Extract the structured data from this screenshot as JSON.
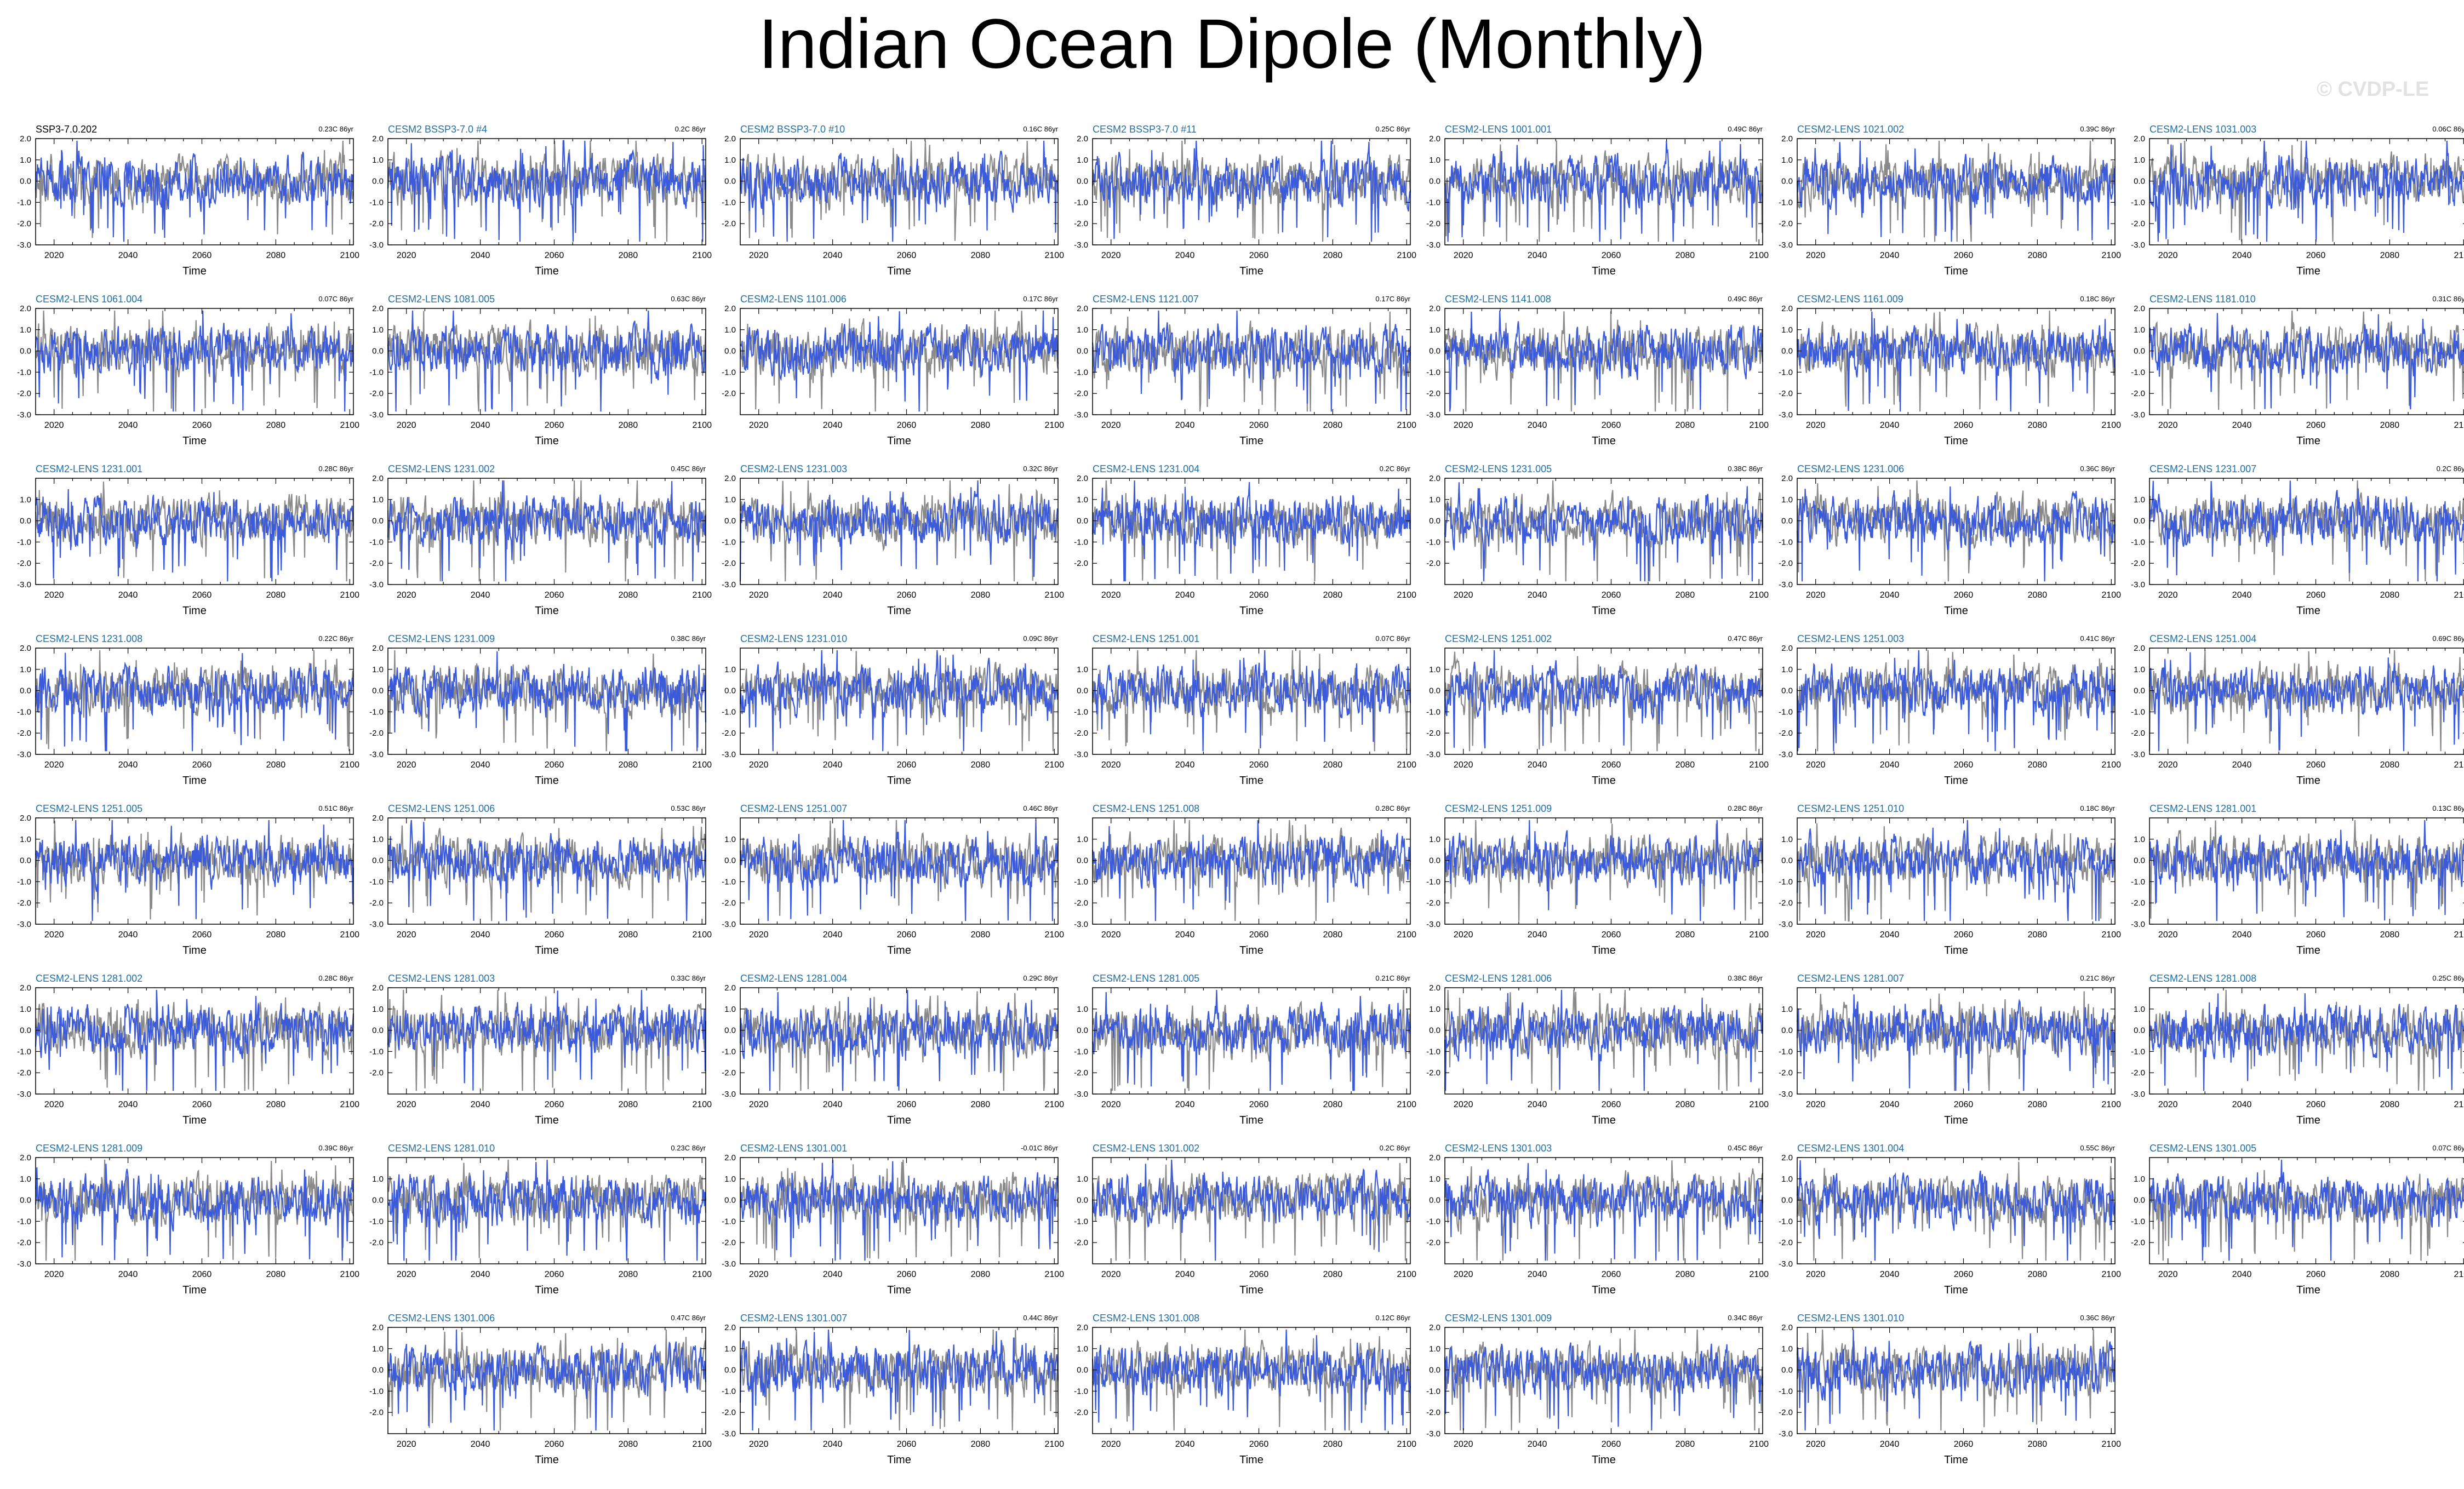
{
  "title": "Indian Ocean Dipole (Monthly)",
  "watermark": "© CVDP-LE",
  "colors": {
    "observations": "#8a8a8a",
    "ensemble_member": "#3b5bdb",
    "panel_title_highlight": "#1e6fa6",
    "panel_title_default": "#000000"
  },
  "chart_data": {
    "type": "line",
    "x_label": "Time",
    "x_ticks": [
      2020,
      2040,
      2060,
      2080,
      2100
    ],
    "xlim": [
      2015,
      2101
    ],
    "trend_units": "C 86yr",
    "note": "Each panel overlays a grey (observed/reference) and a blue (simulated) monthly IOD index series. Series shown are representative traces, not individual monthly values.",
    "panels": [
      {
        "title": "SSP3-7.0.202",
        "trend": "0.23C 86yr",
        "ylim": [
          -3.0,
          2.0
        ],
        "yticks": [
          "2.0",
          "1.0",
          "0.0",
          "-1.0",
          "-2.0",
          "-3.0"
        ],
        "title_color": "default",
        "col": 0,
        "row": 0
      },
      {
        "title": "CESM2 BSSP3-7.0 #4",
        "trend": "0.2C 86yr",
        "ylim": [
          -3.0,
          2.0
        ],
        "yticks": [
          "2.0",
          "1.0",
          "0.0",
          "-1.0",
          "-2.0",
          "-3.0"
        ],
        "col": 1,
        "row": 0
      },
      {
        "title": "CESM2 BSSP3-7.0 #10",
        "trend": "0.16C 86yr",
        "ylim": [
          -3.0,
          2.0
        ],
        "yticks": [
          "2.0",
          "1.0",
          "0.0",
          "-1.0",
          "-2.0"
        ],
        "col": 2,
        "row": 0
      },
      {
        "title": "CESM2 BSSP3-7.0 #11",
        "trend": "0.25C 86yr",
        "ylim": [
          -3.0,
          2.0
        ],
        "yticks": [
          "2.0",
          "1.0",
          "0.0",
          "-1.0",
          "-2.0",
          "-3.0"
        ],
        "col": 3,
        "row": 0
      },
      {
        "title": "CESM2-LENS 1001.001",
        "trend": "0.49C 86yr",
        "ylim": [
          -3.0,
          2.0
        ],
        "yticks": [
          "2.0",
          "1.0",
          "0.0",
          "-1.0",
          "-2.0",
          "-3.0"
        ],
        "col": 4,
        "row": 0
      },
      {
        "title": "CESM2-LENS 1021.002",
        "trend": "0.39C 86yr",
        "ylim": [
          -3.0,
          2.0
        ],
        "yticks": [
          "2.0",
          "1.0",
          "0.0",
          "-1.0",
          "-2.0",
          "-3.0"
        ],
        "col": 5,
        "row": 0
      },
      {
        "title": "CESM2-LENS 1031.003",
        "trend": "0.06C 86yr",
        "ylim": [
          -3.0,
          2.0
        ],
        "yticks": [
          "2.0",
          "1.0",
          "0.0",
          "-1.0",
          "-2.0",
          "-3.0"
        ],
        "col": 6,
        "row": 0
      },
      {
        "title": "CESM2-LENS 1061.004",
        "trend": "0.07C 86yr",
        "ylim": [
          -3.0,
          2.0
        ],
        "yticks": [
          "2.0",
          "1.0",
          "0.0",
          "-1.0",
          "-2.0",
          "-3.0"
        ],
        "col": 0,
        "row": 1
      },
      {
        "title": "CESM2-LENS 1081.005",
        "trend": "0.63C 86yr",
        "ylim": [
          -3.0,
          2.0
        ],
        "yticks": [
          "2.0",
          "1.0",
          "0.0",
          "-1.0",
          "-2.0",
          "-3.0"
        ],
        "col": 1,
        "row": 1
      },
      {
        "title": "CESM2-LENS 1101.006",
        "trend": "0.17C 86yr",
        "ylim": [
          -3.0,
          2.0
        ],
        "yticks": [
          "2.0",
          "1.0",
          "0.0",
          "-1.0",
          "-2.0"
        ],
        "col": 2,
        "row": 1
      },
      {
        "title": "CESM2-LENS 1121.007",
        "trend": "0.17C 86yr",
        "ylim": [
          -3.0,
          2.0
        ],
        "yticks": [
          "2.0",
          "1.0",
          "0.0",
          "-1.0",
          "-2.0",
          "-3.0"
        ],
        "col": 3,
        "row": 1
      },
      {
        "title": "CESM2-LENS 1141.008",
        "trend": "0.49C 86yr",
        "ylim": [
          -3.0,
          2.0
        ],
        "yticks": [
          "2.0",
          "1.0",
          "0.0",
          "-1.0",
          "-2.0",
          "-3.0"
        ],
        "col": 4,
        "row": 1
      },
      {
        "title": "CESM2-LENS 1161.009",
        "trend": "0.18C 86yr",
        "ylim": [
          -3.0,
          2.0
        ],
        "yticks": [
          "2.0",
          "1.0",
          "0.0",
          "-1.0",
          "-2.0",
          "-3.0"
        ],
        "col": 5,
        "row": 1
      },
      {
        "title": "CESM2-LENS 1181.010",
        "trend": "0.31C 86yr",
        "ylim": [
          -3.0,
          2.0
        ],
        "yticks": [
          "2.0",
          "1.0",
          "0.0",
          "-1.0",
          "-2.0",
          "-3.0"
        ],
        "col": 6,
        "row": 1
      },
      {
        "title": "CESM2-LENS 1231.001",
        "trend": "0.28C 86yr",
        "ylim": [
          -3.0,
          2.0
        ],
        "yticks": [
          "1.0",
          "0.0",
          "-1.0",
          "-2.0",
          "-3.0"
        ],
        "col": 0,
        "row": 2
      },
      {
        "title": "CESM2-LENS 1231.002",
        "trend": "0.45C 86yr",
        "ylim": [
          -3.0,
          2.0
        ],
        "yticks": [
          "2.0",
          "1.0",
          "0.0",
          "-1.0",
          "-2.0",
          "-3.0"
        ],
        "col": 1,
        "row": 2
      },
      {
        "title": "CESM2-LENS 1231.003",
        "trend": "0.32C 86yr",
        "ylim": [
          -3.0,
          2.0
        ],
        "yticks": [
          "2.0",
          "1.0",
          "0.0",
          "-1.0",
          "-2.0",
          "-3.0"
        ],
        "col": 2,
        "row": 2
      },
      {
        "title": "CESM2-LENS 1231.004",
        "trend": "0.2C 86yr",
        "ylim": [
          -3.0,
          2.0
        ],
        "yticks": [
          "2.0",
          "1.0",
          "0.0",
          "-1.0",
          "-2.0"
        ],
        "col": 3,
        "row": 2
      },
      {
        "title": "CESM2-LENS 1231.005",
        "trend": "0.38C 86yr",
        "ylim": [
          -3.0,
          2.0
        ],
        "yticks": [
          "2.0",
          "1.0",
          "0.0",
          "-1.0",
          "-2.0"
        ],
        "col": 4,
        "row": 2
      },
      {
        "title": "CESM2-LENS 1231.006",
        "trend": "0.36C 86yr",
        "ylim": [
          -3.0,
          2.0
        ],
        "yticks": [
          "2.0",
          "1.0",
          "0.0",
          "-1.0",
          "-2.0",
          "-3.0"
        ],
        "col": 5,
        "row": 2
      },
      {
        "title": "CESM2-LENS 1231.007",
        "trend": "0.2C 86yr",
        "ylim": [
          -3.0,
          2.0
        ],
        "yticks": [
          "1.0",
          "0.0",
          "-1.0",
          "-2.0",
          "-3.0"
        ],
        "col": 6,
        "row": 2
      },
      {
        "title": "CESM2-LENS 1231.008",
        "trend": "0.22C 86yr",
        "ylim": [
          -3.0,
          2.0
        ],
        "yticks": [
          "2.0",
          "1.0",
          "0.0",
          "-1.0",
          "-2.0",
          "-3.0"
        ],
        "col": 0,
        "row": 3
      },
      {
        "title": "CESM2-LENS 1231.009",
        "trend": "0.38C 86yr",
        "ylim": [
          -3.0,
          2.0
        ],
        "yticks": [
          "2.0",
          "1.0",
          "0.0",
          "-1.0",
          "-2.0",
          "-3.0"
        ],
        "col": 1,
        "row": 3
      },
      {
        "title": "CESM2-LENS 1231.010",
        "trend": "0.09C 86yr",
        "ylim": [
          -3.0,
          2.0
        ],
        "yticks": [
          "1.0",
          "0.0",
          "-1.0",
          "-2.0",
          "-3.0"
        ],
        "col": 2,
        "row": 3
      },
      {
        "title": "CESM2-LENS 1251.001",
        "trend": "0.07C 86yr",
        "ylim": [
          -3.0,
          2.0
        ],
        "yticks": [
          "1.0",
          "0.0",
          "-1.0",
          "-2.0",
          "-3.0"
        ],
        "col": 3,
        "row": 3
      },
      {
        "title": "CESM2-LENS 1251.002",
        "trend": "0.47C 86yr",
        "ylim": [
          -3.0,
          2.0
        ],
        "yticks": [
          "1.0",
          "0.0",
          "-1.0",
          "-2.0",
          "-3.0"
        ],
        "col": 4,
        "row": 3
      },
      {
        "title": "CESM2-LENS 1251.003",
        "trend": "0.41C 86yr",
        "ylim": [
          -3.0,
          2.0
        ],
        "yticks": [
          "2.0",
          "1.0",
          "0.0",
          "-1.0",
          "-2.0",
          "-3.0"
        ],
        "col": 5,
        "row": 3
      },
      {
        "title": "CESM2-LENS 1251.004",
        "trend": "0.69C 86yr",
        "ylim": [
          -3.0,
          2.0
        ],
        "yticks": [
          "2.0",
          "1.0",
          "0.0",
          "-1.0",
          "-2.0",
          "-3.0"
        ],
        "col": 6,
        "row": 3
      },
      {
        "title": "CESM2-LENS 1251.005",
        "trend": "0.51C 86yr",
        "ylim": [
          -3.0,
          2.0
        ],
        "yticks": [
          "2.0",
          "1.0",
          "0.0",
          "-1.0",
          "-2.0",
          "-3.0"
        ],
        "col": 0,
        "row": 4
      },
      {
        "title": "CESM2-LENS 1251.006",
        "trend": "0.53C 86yr",
        "ylim": [
          -3.0,
          2.0
        ],
        "yticks": [
          "2.0",
          "1.0",
          "0.0",
          "-1.0",
          "-2.0",
          "-3.0"
        ],
        "col": 1,
        "row": 4
      },
      {
        "title": "CESM2-LENS 1251.007",
        "trend": "0.46C 86yr",
        "ylim": [
          -3.0,
          2.0
        ],
        "yticks": [
          "1.0",
          "0.0",
          "-1.0",
          "-2.0",
          "-3.0"
        ],
        "col": 2,
        "row": 4
      },
      {
        "title": "CESM2-LENS 1251.008",
        "trend": "0.28C 86yr",
        "ylim": [
          -3.0,
          2.0
        ],
        "yticks": [
          "1.0",
          "0.0",
          "-1.0",
          "-2.0",
          "-3.0"
        ],
        "col": 3,
        "row": 4
      },
      {
        "title": "CESM2-LENS 1251.009",
        "trend": "0.28C 86yr",
        "ylim": [
          -3.0,
          2.0
        ],
        "yticks": [
          "1.0",
          "0.0",
          "-1.0",
          "-2.0",
          "-3.0"
        ],
        "col": 4,
        "row": 4
      },
      {
        "title": "CESM2-LENS 1251.010",
        "trend": "0.18C 86yr",
        "ylim": [
          -3.0,
          2.0
        ],
        "yticks": [
          "1.0",
          "0.0",
          "-1.0",
          "-2.0",
          "-3.0"
        ],
        "col": 5,
        "row": 4
      },
      {
        "title": "CESM2-LENS 1281.001",
        "trend": "0.13C 86yr",
        "ylim": [
          -3.0,
          2.0
        ],
        "yticks": [
          "1.0",
          "0.0",
          "-1.0",
          "-2.0",
          "-3.0"
        ],
        "col": 6,
        "row": 4
      },
      {
        "title": "CESM2-LENS 1281.002",
        "trend": "0.28C 86yr",
        "ylim": [
          -3.0,
          2.0
        ],
        "yticks": [
          "2.0",
          "1.0",
          "0.0",
          "-1.0",
          "-2.0",
          "-3.0"
        ],
        "col": 0,
        "row": 5
      },
      {
        "title": "CESM2-LENS 1281.003",
        "trend": "0.33C 86yr",
        "ylim": [
          -3.0,
          2.0
        ],
        "yticks": [
          "2.0",
          "1.0",
          "0.0",
          "-1.0",
          "-2.0"
        ],
        "col": 1,
        "row": 5
      },
      {
        "title": "CESM2-LENS 1281.004",
        "trend": "0.29C 86yr",
        "ylim": [
          -3.0,
          2.0
        ],
        "yticks": [
          "2.0",
          "1.0",
          "0.0",
          "-1.0",
          "-2.0",
          "-3.0"
        ],
        "col": 2,
        "row": 5
      },
      {
        "title": "CESM2-LENS 1281.005",
        "trend": "0.21C 86yr",
        "ylim": [
          -3.0,
          2.0
        ],
        "yticks": [
          "1.0",
          "0.0",
          "-1.0",
          "-2.0",
          "-3.0"
        ],
        "col": 3,
        "row": 5
      },
      {
        "title": "CESM2-LENS 1281.006",
        "trend": "0.38C 86yr",
        "ylim": [
          -3.0,
          2.0
        ],
        "yticks": [
          "2.0",
          "1.0",
          "0.0",
          "-1.0",
          "-2.0"
        ],
        "col": 4,
        "row": 5
      },
      {
        "title": "CESM2-LENS 1281.007",
        "trend": "0.21C 86yr",
        "ylim": [
          -3.0,
          2.0
        ],
        "yticks": [
          "1.0",
          "0.0",
          "-1.0",
          "-2.0",
          "-3.0"
        ],
        "col": 5,
        "row": 5
      },
      {
        "title": "CESM2-LENS 1281.008",
        "trend": "0.25C 86yr",
        "ylim": [
          -3.0,
          2.0
        ],
        "yticks": [
          "1.0",
          "0.0",
          "-1.0",
          "-2.0",
          "-3.0"
        ],
        "col": 6,
        "row": 5
      },
      {
        "title": "CESM2-LENS 1281.009",
        "trend": "0.39C 86yr",
        "ylim": [
          -3.0,
          2.0
        ],
        "yticks": [
          "2.0",
          "1.0",
          "0.0",
          "-1.0",
          "-2.0",
          "-3.0"
        ],
        "col": 0,
        "row": 6
      },
      {
        "title": "CESM2-LENS 1281.010",
        "trend": "0.23C 86yr",
        "ylim": [
          -3.0,
          2.0
        ],
        "yticks": [
          "1.0",
          "0.0",
          "-1.0",
          "-2.0"
        ],
        "col": 1,
        "row": 6
      },
      {
        "title": "CESM2-LENS 1301.001",
        "trend": "-0.01C 86yr",
        "ylim": [
          -3.0,
          2.0
        ],
        "yticks": [
          "2.0",
          "1.0",
          "0.0",
          "-1.0",
          "-2.0",
          "-3.0"
        ],
        "col": 2,
        "row": 6
      },
      {
        "title": "CESM2-LENS 1301.002",
        "trend": "0.2C 86yr",
        "ylim": [
          -3.0,
          2.0
        ],
        "yticks": [
          "1.0",
          "0.0",
          "-1.0",
          "-2.0"
        ],
        "col": 3,
        "row": 6
      },
      {
        "title": "CESM2-LENS 1301.003",
        "trend": "0.45C 86yr",
        "ylim": [
          -3.0,
          2.0
        ],
        "yticks": [
          "2.0",
          "1.0",
          "0.0",
          "-1.0",
          "-2.0"
        ],
        "col": 4,
        "row": 6
      },
      {
        "title": "CESM2-LENS 1301.004",
        "trend": "0.55C 86yr",
        "ylim": [
          -3.0,
          2.0
        ],
        "yticks": [
          "2.0",
          "1.0",
          "0.0",
          "-1.0",
          "-2.0",
          "-3.0"
        ],
        "col": 5,
        "row": 6
      },
      {
        "title": "CESM2-LENS 1301.005",
        "trend": "0.07C 86yr",
        "ylim": [
          -3.0,
          2.0
        ],
        "yticks": [
          "1.0",
          "0.0",
          "-1.0",
          "-2.0"
        ],
        "col": 6,
        "row": 6
      },
      {
        "title": "CESM2-LENS 1301.006",
        "trend": "0.47C 86yr",
        "ylim": [
          -3.0,
          2.0
        ],
        "yticks": [
          "2.0",
          "1.0",
          "0.0",
          "-1.0",
          "-2.0"
        ],
        "col": 1,
        "row": 7
      },
      {
        "title": "CESM2-LENS 1301.007",
        "trend": "0.44C 86yr",
        "ylim": [
          -3.0,
          2.0
        ],
        "yticks": [
          "2.0",
          "1.0",
          "0.0",
          "-1.0",
          "-2.0",
          "-3.0"
        ],
        "col": 2,
        "row": 7
      },
      {
        "title": "CESM2-LENS 1301.008",
        "trend": "0.12C 86yr",
        "ylim": [
          -3.0,
          2.0
        ],
        "yticks": [
          "2.0",
          "1.0",
          "0.0",
          "-1.0",
          "-2.0"
        ],
        "col": 3,
        "row": 7
      },
      {
        "title": "CESM2-LENS 1301.009",
        "trend": "0.34C 86yr",
        "ylim": [
          -3.0,
          2.0
        ],
        "yticks": [
          "2.0",
          "1.0",
          "0.0",
          "-1.0",
          "-2.0",
          "-3.0"
        ],
        "col": 4,
        "row": 7
      },
      {
        "title": "CESM2-LENS 1301.010",
        "trend": "0.36C 86yr",
        "ylim": [
          -3.0,
          2.0
        ],
        "yticks": [
          "2.0",
          "1.0",
          "0.0",
          "-1.0",
          "-2.0",
          "-3.0"
        ],
        "col": 5,
        "row": 7
      }
    ]
  }
}
